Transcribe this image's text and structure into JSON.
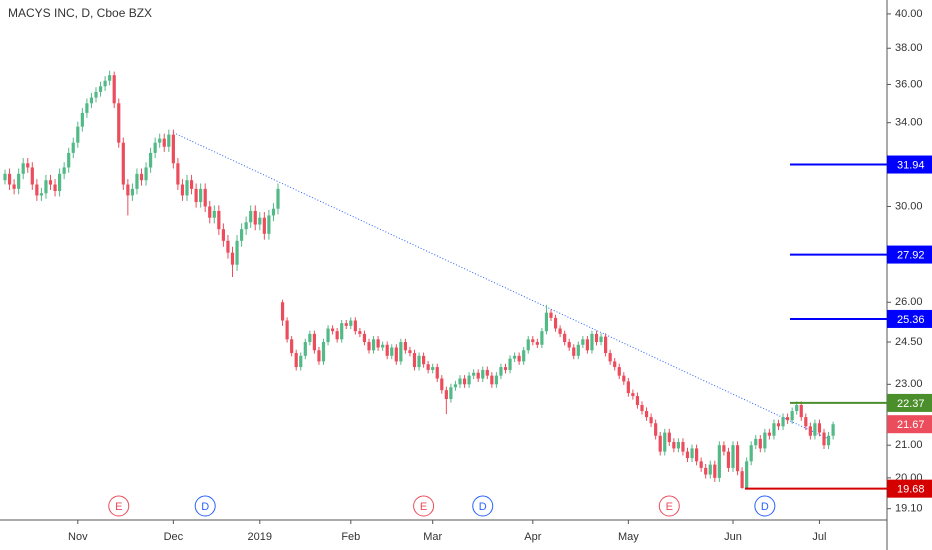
{
  "chart_data": {
    "type": "candlestick",
    "title": "MACYS INC, D, Cboe BZX",
    "log_scale": true,
    "up_color": "#53b987",
    "down_color": "#eb4d5c",
    "ylim": [
      18.78,
      40.84
    ],
    "yticks": [
      {
        "value": 40,
        "label": "40.00"
      },
      {
        "value": 38,
        "label": "38.00"
      },
      {
        "value": 36,
        "label": "36.00"
      },
      {
        "value": 34,
        "label": "34.00"
      },
      {
        "value": 30,
        "label": "30.00"
      },
      {
        "value": 26,
        "label": "26.00"
      },
      {
        "value": 24.5,
        "label": "24.50"
      },
      {
        "value": 23,
        "label": "23.00"
      },
      {
        "value": 21,
        "label": "21.00"
      },
      {
        "value": 20,
        "label": "20.00"
      },
      {
        "value": 19.1,
        "label": "19.10"
      }
    ],
    "categories": [
      null,
      null,
      null,
      null,
      null,
      null,
      null,
      null,
      null,
      null,
      null,
      null,
      null,
      null,
      null,
      null,
      "Nov",
      null,
      null,
      null,
      null,
      null,
      null,
      null,
      null,
      null,
      null,
      null,
      null,
      null,
      null,
      null,
      null,
      null,
      null,
      null,
      null,
      "Dec",
      null,
      null,
      null,
      null,
      null,
      null,
      null,
      null,
      null,
      null,
      null,
      null,
      null,
      null,
      null,
      null,
      null,
      null,
      "2019",
      null,
      null,
      null,
      null,
      null,
      null,
      null,
      null,
      null,
      null,
      null,
      null,
      null,
      null,
      null,
      null,
      null,
      null,
      null,
      "Feb",
      null,
      null,
      null,
      null,
      null,
      null,
      null,
      null,
      null,
      null,
      null,
      null,
      null,
      null,
      null,
      null,
      null,
      "Mar",
      null,
      null,
      null,
      null,
      null,
      null,
      null,
      null,
      null,
      null,
      null,
      null,
      null,
      null,
      null,
      null,
      null,
      null,
      null,
      null,
      null,
      "Apr",
      null,
      null,
      null,
      null,
      null,
      null,
      null,
      null,
      null,
      null,
      null,
      null,
      null,
      null,
      null,
      null,
      null,
      null,
      null,
      null,
      "May",
      null,
      null,
      null,
      null,
      null,
      null,
      null,
      null,
      null,
      null,
      null,
      null,
      null,
      null,
      null,
      null,
      null,
      null,
      null,
      null,
      null,
      null,
      "Jun",
      null,
      null,
      null,
      null,
      null,
      null,
      null,
      null,
      null,
      null,
      null,
      null,
      null,
      null,
      null,
      null,
      null,
      null,
      "Jul",
      null,
      null,
      null
    ],
    "candles": [
      [
        31.2,
        31.7,
        31.0,
        31.5
      ],
      [
        31.5,
        31.75,
        30.75,
        31.0
      ],
      [
        31.0,
        31.25,
        30.55,
        30.8
      ],
      [
        30.8,
        31.75,
        30.55,
        31.5
      ],
      [
        31.5,
        32.25,
        31.25,
        32.0
      ],
      [
        32.0,
        32.25,
        31.55,
        31.8
      ],
      [
        31.8,
        32.05,
        30.75,
        31.0
      ],
      [
        31.0,
        31.25,
        30.25,
        30.5
      ],
      [
        30.5,
        30.85,
        30.25,
        30.6
      ],
      [
        30.6,
        31.45,
        30.35,
        31.2
      ],
      [
        31.2,
        31.45,
        30.75,
        31.0
      ],
      [
        31.0,
        31.25,
        30.45,
        30.7
      ],
      [
        30.7,
        31.75,
        30.45,
        31.5
      ],
      [
        31.5,
        32.05,
        31.25,
        31.8
      ],
      [
        31.8,
        32.75,
        31.55,
        32.5
      ],
      [
        32.5,
        33.25,
        32.25,
        33.0
      ],
      [
        33.0,
        34.05,
        32.75,
        33.8
      ],
      [
        33.8,
        34.75,
        33.55,
        34.5
      ],
      [
        34.5,
        35.25,
        34.25,
        35.0
      ],
      [
        35.0,
        35.55,
        34.75,
        35.3
      ],
      [
        35.3,
        35.85,
        35.05,
        35.6
      ],
      [
        35.6,
        36.15,
        35.35,
        35.9
      ],
      [
        35.9,
        36.45,
        35.65,
        36.2
      ],
      [
        36.2,
        36.75,
        35.95,
        36.5
      ],
      [
        36.5,
        36.7,
        34.75,
        35.0
      ],
      [
        35.0,
        35.25,
        32.75,
        33.0
      ],
      [
        33.0,
        33.25,
        30.75,
        31.0
      ],
      [
        31.0,
        31.25,
        29.6,
        30.5
      ],
      [
        30.5,
        31.05,
        30.25,
        30.8
      ],
      [
        30.8,
        31.75,
        30.55,
        31.5
      ],
      [
        31.5,
        31.75,
        30.95,
        31.2
      ],
      [
        31.2,
        32.05,
        30.95,
        31.8
      ],
      [
        31.8,
        32.75,
        31.55,
        32.5
      ],
      [
        32.5,
        33.25,
        32.25,
        33.0
      ],
      [
        33.0,
        33.45,
        32.75,
        33.2
      ],
      [
        33.2,
        33.45,
        32.55,
        32.8
      ],
      [
        32.8,
        33.65,
        32.55,
        33.4
      ],
      [
        33.4,
        33.65,
        31.75,
        32.0
      ],
      [
        32.0,
        32.25,
        30.75,
        31.0
      ],
      [
        31.0,
        31.25,
        30.25,
        30.5
      ],
      [
        30.5,
        31.45,
        30.25,
        31.2
      ],
      [
        31.2,
        31.45,
        30.55,
        30.8
      ],
      [
        30.8,
        31.05,
        29.95,
        30.2
      ],
      [
        30.2,
        31.05,
        29.95,
        30.8
      ],
      [
        30.8,
        31.05,
        29.75,
        30.0
      ],
      [
        30.0,
        30.25,
        29.25,
        29.5
      ],
      [
        29.5,
        30.05,
        29.25,
        29.8
      ],
      [
        29.8,
        30.05,
        28.75,
        29.0
      ],
      [
        29.0,
        29.25,
        28.25,
        28.5
      ],
      [
        28.5,
        28.75,
        27.75,
        28.0
      ],
      [
        28.0,
        28.25,
        27.0,
        27.5
      ],
      [
        27.5,
        28.75,
        27.25,
        28.5
      ],
      [
        28.5,
        29.25,
        28.25,
        29.0
      ],
      [
        29.0,
        29.55,
        28.75,
        29.3
      ],
      [
        29.3,
        30.05,
        29.05,
        29.8
      ],
      [
        29.8,
        30.05,
        28.95,
        29.2
      ],
      [
        29.2,
        29.75,
        28.95,
        29.5
      ],
      [
        29.5,
        29.75,
        28.55,
        28.8
      ],
      [
        28.8,
        29.85,
        28.55,
        29.6
      ],
      [
        29.6,
        30.15,
        29.35,
        29.9
      ],
      [
        29.9,
        31.05,
        29.65,
        30.8
      ],
      [
        26.0,
        26.1,
        25.1,
        25.3
      ],
      [
        25.3,
        25.42,
        24.48,
        24.6
      ],
      [
        24.6,
        24.72,
        23.98,
        24.1
      ],
      [
        24.1,
        24.22,
        23.48,
        23.6
      ],
      [
        23.6,
        24.12,
        23.48,
        24.0
      ],
      [
        24.0,
        24.62,
        23.88,
        24.5
      ],
      [
        24.5,
        24.92,
        24.38,
        24.8
      ],
      [
        24.8,
        24.92,
        24.08,
        24.2
      ],
      [
        24.2,
        24.32,
        23.68,
        23.8
      ],
      [
        23.8,
        24.62,
        23.68,
        24.5
      ],
      [
        24.5,
        25.12,
        24.38,
        25.0
      ],
      [
        25.0,
        25.12,
        24.78,
        24.9
      ],
      [
        24.9,
        25.02,
        24.48,
        24.6
      ],
      [
        24.6,
        25.32,
        24.48,
        25.2
      ],
      [
        25.2,
        25.32,
        24.98,
        25.1
      ],
      [
        25.1,
        25.42,
        24.98,
        25.3
      ],
      [
        25.3,
        25.42,
        24.78,
        24.9
      ],
      [
        24.9,
        25.02,
        24.68,
        24.8
      ],
      [
        24.8,
        24.92,
        24.38,
        24.5
      ],
      [
        24.5,
        24.62,
        24.08,
        24.2
      ],
      [
        24.2,
        24.72,
        24.08,
        24.6
      ],
      [
        24.6,
        24.72,
        24.18,
        24.3
      ],
      [
        24.3,
        24.52,
        24.18,
        24.4
      ],
      [
        24.4,
        24.52,
        23.88,
        24.0
      ],
      [
        24.0,
        24.42,
        23.88,
        24.3
      ],
      [
        24.3,
        24.42,
        23.68,
        23.8
      ],
      [
        23.8,
        24.62,
        23.68,
        24.5
      ],
      [
        24.5,
        24.62,
        24.08,
        24.2
      ],
      [
        24.2,
        24.32,
        23.98,
        24.1
      ],
      [
        24.1,
        24.22,
        23.48,
        23.6
      ],
      [
        23.6,
        24.12,
        23.48,
        24.0
      ],
      [
        24.0,
        24.12,
        23.58,
        23.7
      ],
      [
        23.7,
        23.82,
        23.38,
        23.5
      ],
      [
        23.5,
        23.72,
        23.38,
        23.6
      ],
      [
        23.6,
        23.72,
        23.08,
        23.2
      ],
      [
        23.2,
        23.32,
        22.68,
        22.8
      ],
      [
        22.8,
        22.92,
        22.0,
        22.5
      ],
      [
        22.5,
        23.02,
        22.38,
        22.9
      ],
      [
        22.9,
        23.12,
        22.78,
        23.0
      ],
      [
        23.0,
        23.32,
        22.88,
        23.2
      ],
      [
        23.2,
        23.32,
        22.88,
        23.0
      ],
      [
        23.0,
        23.42,
        22.88,
        23.3
      ],
      [
        23.3,
        23.52,
        23.18,
        23.4
      ],
      [
        23.4,
        23.52,
        23.08,
        23.2
      ],
      [
        23.2,
        23.62,
        23.08,
        23.5
      ],
      [
        23.5,
        23.62,
        23.18,
        23.3
      ],
      [
        23.3,
        23.42,
        22.88,
        23.0
      ],
      [
        23.0,
        23.42,
        22.88,
        23.3
      ],
      [
        23.3,
        23.72,
        23.18,
        23.6
      ],
      [
        23.6,
        23.72,
        23.38,
        23.5
      ],
      [
        23.5,
        24.02,
        23.38,
        23.9
      ],
      [
        23.9,
        24.12,
        23.78,
        24.0
      ],
      [
        24.0,
        24.12,
        23.68,
        23.8
      ],
      [
        23.8,
        24.32,
        23.68,
        24.2
      ],
      [
        24.2,
        24.72,
        24.08,
        24.6
      ],
      [
        24.6,
        24.72,
        24.38,
        24.5
      ],
      [
        24.5,
        24.62,
        24.28,
        24.4
      ],
      [
        24.4,
        25.02,
        24.28,
        24.9
      ],
      [
        24.9,
        25.9,
        24.78,
        25.6
      ],
      [
        25.6,
        25.72,
        25.28,
        25.4
      ],
      [
        25.4,
        25.52,
        24.88,
        25.0
      ],
      [
        25.0,
        25.12,
        24.68,
        24.8
      ],
      [
        24.8,
        24.92,
        24.38,
        24.5
      ],
      [
        24.5,
        24.62,
        24.18,
        24.3
      ],
      [
        24.3,
        24.42,
        23.88,
        24.0
      ],
      [
        24.0,
        24.52,
        23.88,
        24.4
      ],
      [
        24.4,
        24.72,
        24.28,
        24.6
      ],
      [
        24.6,
        24.72,
        24.08,
        24.2
      ],
      [
        24.2,
        24.92,
        24.08,
        24.8
      ],
      [
        24.8,
        24.92,
        24.38,
        24.5
      ],
      [
        24.5,
        24.82,
        24.38,
        24.7
      ],
      [
        24.7,
        24.82,
        23.98,
        24.1
      ],
      [
        24.1,
        24.22,
        23.68,
        23.8
      ],
      [
        23.8,
        23.92,
        23.48,
        23.6
      ],
      [
        23.6,
        23.72,
        23.18,
        23.3
      ],
      [
        23.3,
        23.42,
        22.98,
        23.1
      ],
      [
        23.1,
        23.22,
        22.58,
        22.7
      ],
      [
        22.7,
        22.82,
        22.48,
        22.6
      ],
      [
        22.6,
        22.72,
        22.18,
        22.3
      ],
      [
        22.3,
        22.42,
        21.98,
        22.1
      ],
      [
        22.1,
        22.22,
        21.78,
        21.9
      ],
      [
        21.9,
        22.02,
        21.58,
        21.7
      ],
      [
        21.7,
        21.82,
        21.18,
        21.3
      ],
      [
        21.3,
        21.42,
        20.68,
        20.8
      ],
      [
        20.8,
        21.52,
        20.68,
        21.4
      ],
      [
        21.4,
        21.52,
        20.98,
        21.1
      ],
      [
        21.1,
        21.22,
        20.78,
        20.9
      ],
      [
        20.9,
        21.22,
        20.78,
        21.1
      ],
      [
        21.1,
        21.22,
        20.68,
        20.8
      ],
      [
        20.8,
        20.92,
        20.48,
        20.6
      ],
      [
        20.6,
        21.02,
        20.48,
        20.9
      ],
      [
        20.9,
        21.02,
        20.38,
        20.5
      ],
      [
        20.5,
        20.62,
        20.18,
        20.3
      ],
      [
        20.3,
        20.42,
        19.98,
        20.1
      ],
      [
        20.1,
        20.52,
        19.98,
        20.4
      ],
      [
        20.4,
        20.52,
        19.88,
        20.0
      ],
      [
        20.0,
        21.12,
        19.88,
        21.0
      ],
      [
        21.0,
        21.12,
        20.68,
        20.8
      ],
      [
        20.8,
        20.92,
        20.18,
        20.3
      ],
      [
        20.3,
        21.12,
        20.18,
        21.0
      ],
      [
        21.0,
        21.12,
        20.08,
        20.2
      ],
      [
        20.2,
        20.32,
        19.68,
        19.7
      ],
      [
        19.7,
        20.62,
        19.68,
        20.5
      ],
      [
        20.5,
        21.12,
        20.38,
        21.0
      ],
      [
        21.0,
        21.32,
        20.88,
        21.2
      ],
      [
        21.2,
        21.32,
        20.78,
        20.9
      ],
      [
        20.9,
        21.52,
        20.78,
        21.4
      ],
      [
        21.4,
        21.52,
        21.18,
        21.3
      ],
      [
        21.3,
        21.82,
        21.18,
        21.7
      ],
      [
        21.7,
        21.82,
        21.48,
        21.6
      ],
      [
        21.6,
        22.02,
        21.48,
        21.9
      ],
      [
        21.9,
        22.02,
        21.68,
        21.8
      ],
      [
        21.8,
        22.22,
        21.68,
        22.1
      ],
      [
        22.1,
        22.42,
        21.98,
        22.3
      ],
      [
        22.3,
        22.42,
        21.78,
        21.9
      ],
      [
        21.9,
        22.02,
        21.48,
        21.6
      ],
      [
        21.6,
        21.72,
        21.18,
        21.3
      ],
      [
        21.3,
        21.82,
        21.18,
        21.7
      ],
      [
        21.7,
        21.82,
        21.28,
        21.4
      ],
      [
        21.4,
        21.52,
        20.88,
        21.0
      ],
      [
        21.0,
        21.42,
        20.88,
        21.3
      ],
      [
        21.3,
        21.75,
        21.18,
        21.67
      ]
    ],
    "trendline": {
      "color": "#2962ff",
      "values": [
        33.5,
        21.2
      ]
    },
    "levels": [
      {
        "value": 31.94,
        "color": "#0000ff"
      },
      {
        "value": 27.92,
        "color": "#0000ff"
      },
      {
        "value": 25.36,
        "color": "#0000ff"
      },
      {
        "value": 22.37,
        "color": "#4a8f2c"
      },
      {
        "value": 19.68,
        "color": "#d50000"
      }
    ],
    "last_price": {
      "value": 21.67,
      "color": "#eb4d5c"
    },
    "events": [
      "E",
      "D",
      "E",
      "D",
      "E",
      "D"
    ]
  }
}
